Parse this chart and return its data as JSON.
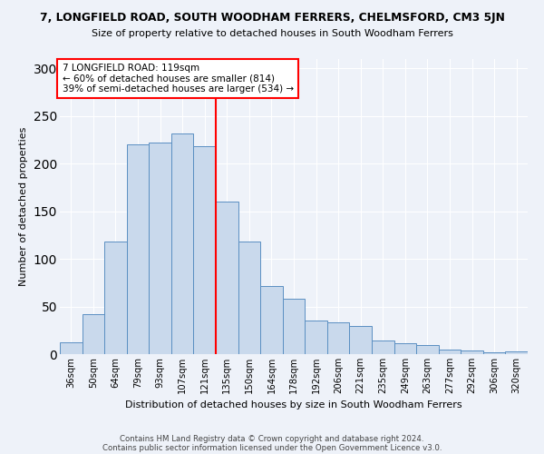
{
  "title": "7, LONGFIELD ROAD, SOUTH WOODHAM FERRERS, CHELMSFORD, CM3 5JN",
  "subtitle": "Size of property relative to detached houses in South Woodham Ferrers",
  "xlabel": "Distribution of detached houses by size in South Woodham Ferrers",
  "ylabel": "Number of detached properties",
  "categories": [
    "36sqm",
    "50sqm",
    "64sqm",
    "79sqm",
    "93sqm",
    "107sqm",
    "121sqm",
    "135sqm",
    "150sqm",
    "164sqm",
    "178sqm",
    "192sqm",
    "206sqm",
    "221sqm",
    "235sqm",
    "249sqm",
    "263sqm",
    "277sqm",
    "292sqm",
    "306sqm",
    "320sqm"
  ],
  "values": [
    12,
    42,
    118,
    220,
    222,
    232,
    218,
    160,
    118,
    72,
    58,
    35,
    33,
    30,
    14,
    11,
    10,
    5,
    4,
    2,
    3
  ],
  "bar_color": "#c9d9ec",
  "bar_edge_color": "#5a8fc2",
  "vline_x": 6.5,
  "vline_color": "red",
  "annotation_title": "7 LONGFIELD ROAD: 119sqm",
  "annotation_line1": "← 60% of detached houses are smaller (814)",
  "annotation_line2": "39% of semi-detached houses are larger (534) →",
  "annotation_box_color": "white",
  "annotation_box_edge": "red",
  "ylim": [
    0,
    310
  ],
  "yticks": [
    0,
    50,
    100,
    150,
    200,
    250,
    300
  ],
  "footer1": "Contains HM Land Registry data © Crown copyright and database right 2024.",
  "footer2": "Contains public sector information licensed under the Open Government Licence v3.0.",
  "bg_color": "#eef2f9",
  "grid_color": "white"
}
